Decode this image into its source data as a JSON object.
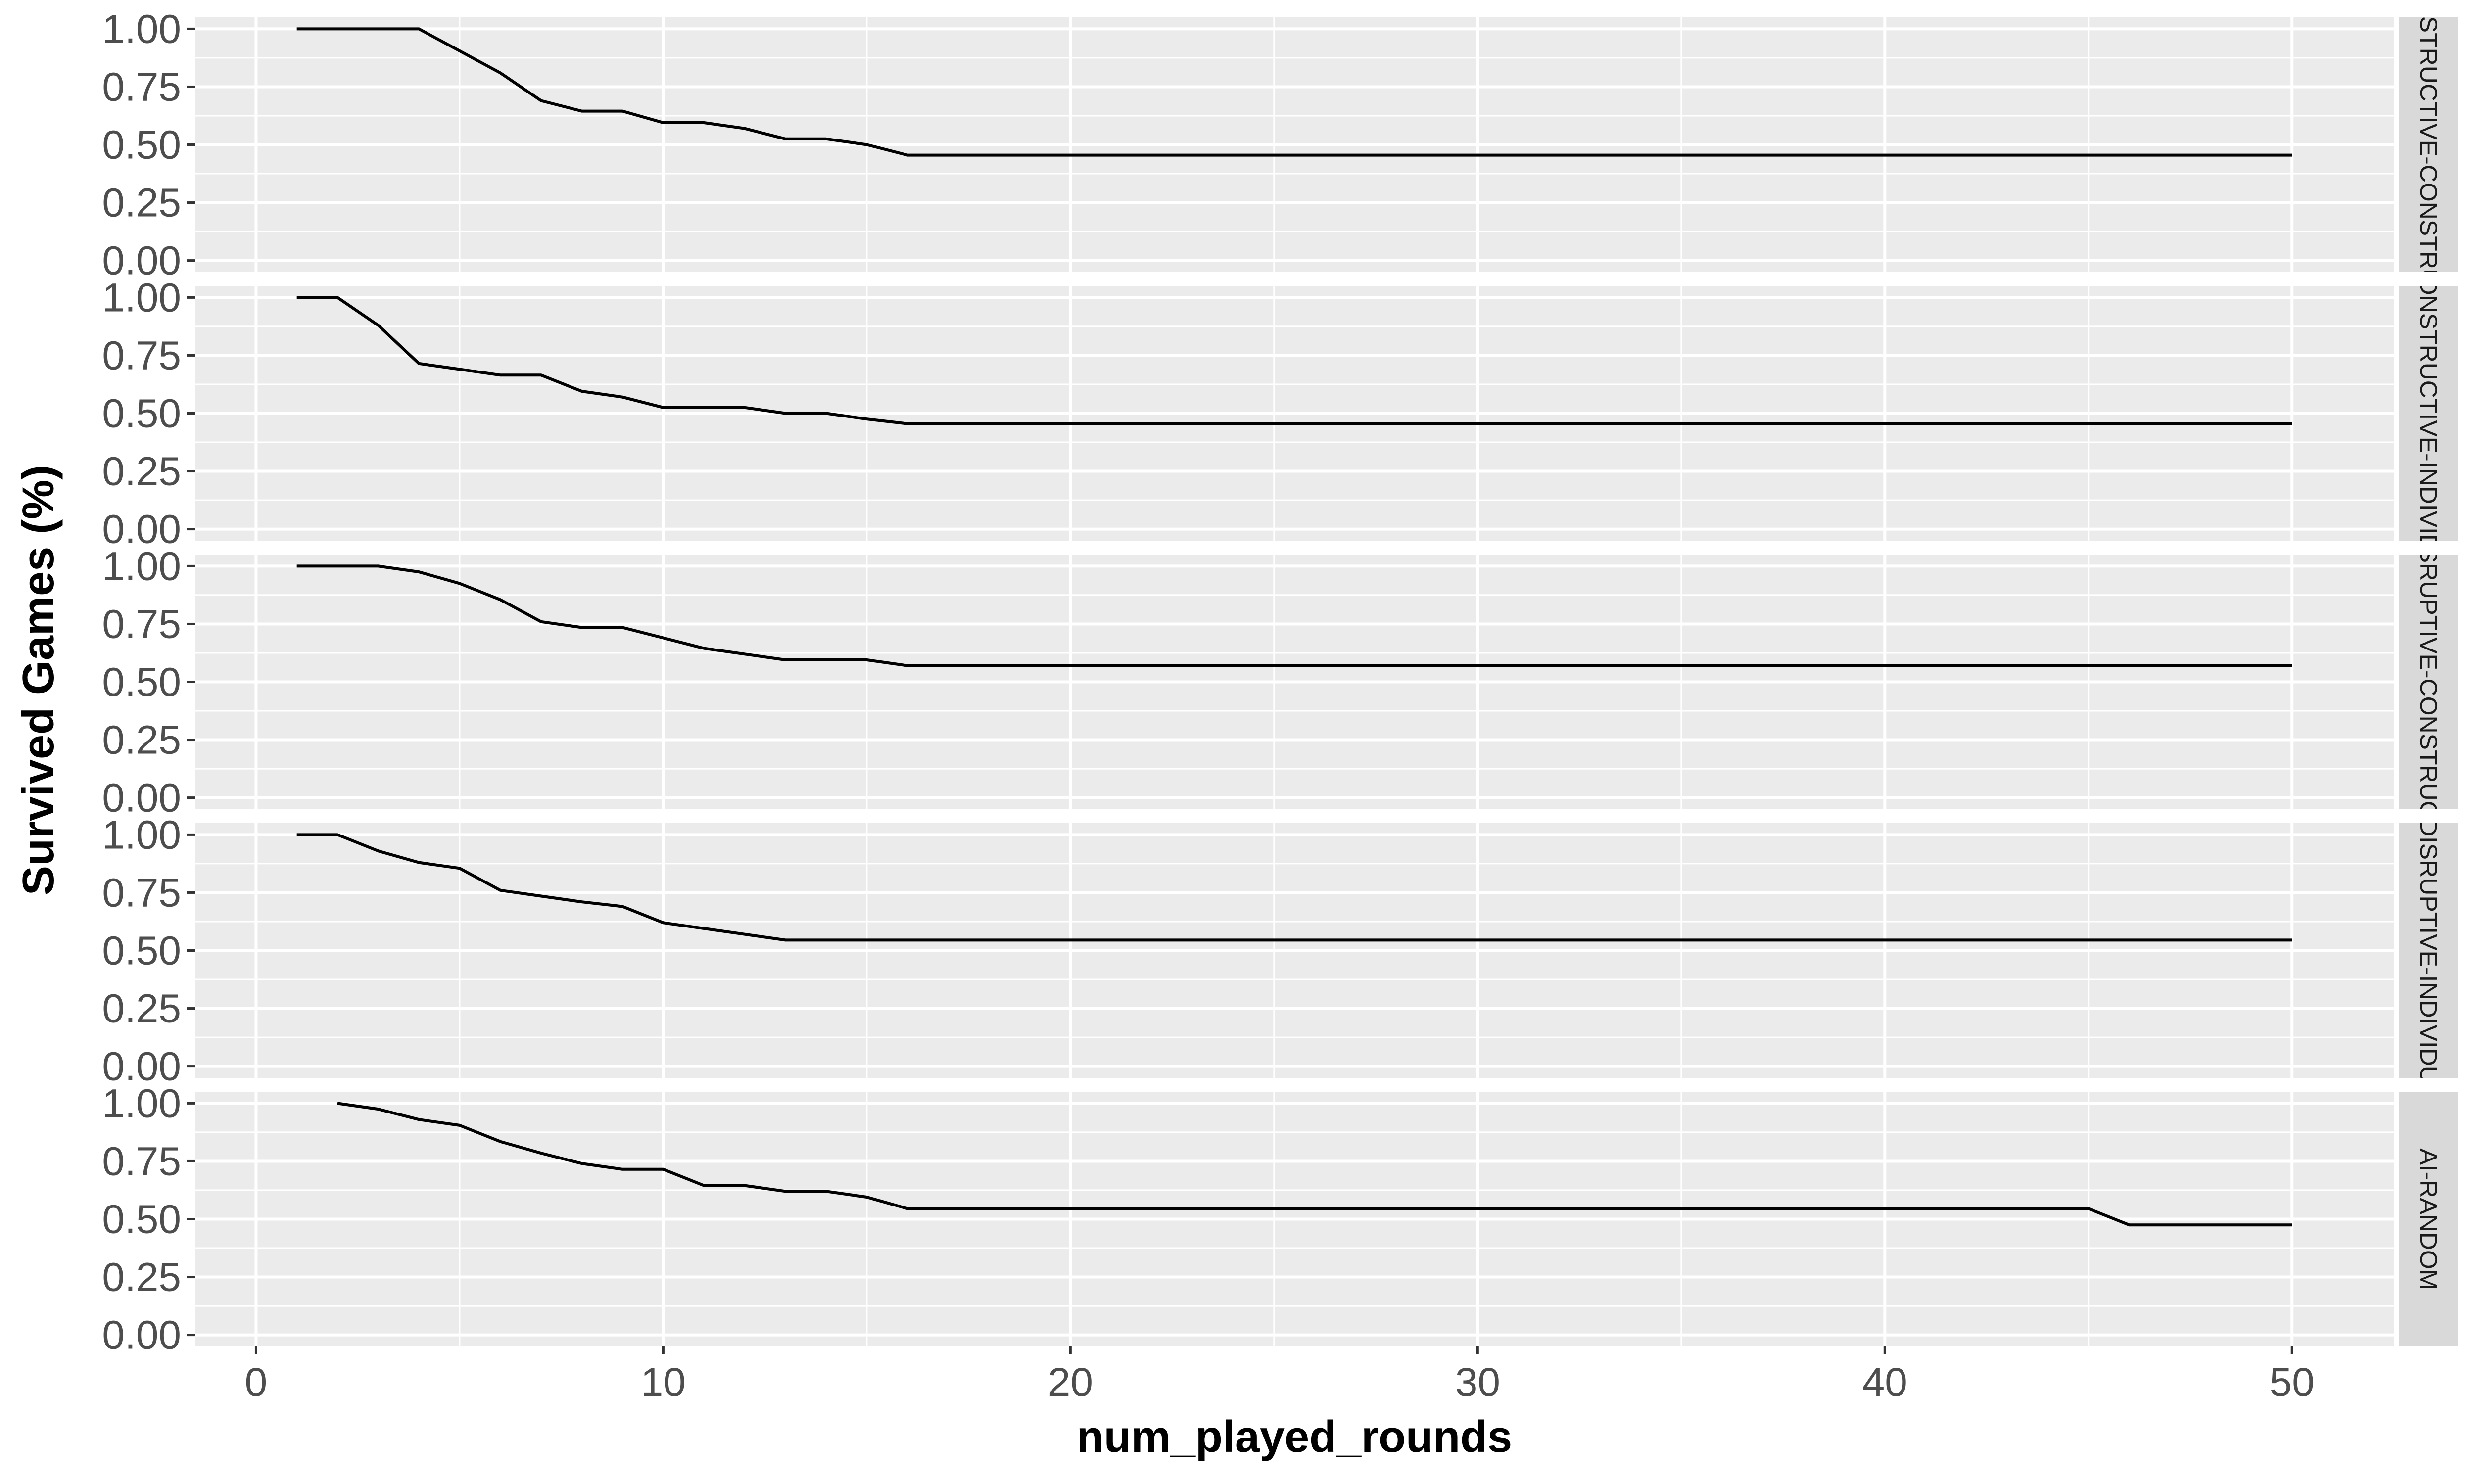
{
  "chart_data": {
    "type": "line",
    "xlabel": "num_played_rounds",
    "ylabel": "Survived Games (%)",
    "xlim": [
      -1.5,
      52.5
    ],
    "ylim": [
      -0.05,
      1.05
    ],
    "x_ticks": [
      0,
      10,
      20,
      30,
      40,
      50
    ],
    "x_tick_labels": [
      "0",
      "10",
      "20",
      "30",
      "40",
      "50"
    ],
    "y_ticks": [
      0,
      0.25,
      0.5,
      0.75,
      1.0
    ],
    "y_tick_labels": [
      "0.00",
      "0.25",
      "0.50",
      "0.75",
      "1.00"
    ],
    "grid": true,
    "line_color": "#000000",
    "panel_background": "#ebebeb",
    "strip_background": "#d9d9d9",
    "panels": [
      {
        "strip_label": "AI-CONSTRUCTIVE-CONSTRUCTIVE",
        "x": [
          1,
          2,
          3,
          4,
          5,
          6,
          7,
          8,
          9,
          10,
          11,
          12,
          13,
          14,
          15,
          16,
          50
        ],
        "y": [
          1.0,
          1.0,
          1.0,
          1.0,
          0.905,
          0.81,
          0.69,
          0.645,
          0.645,
          0.595,
          0.595,
          0.57,
          0.525,
          0.525,
          0.5,
          0.455,
          0.455
        ]
      },
      {
        "strip_label": "AI-CONSTRUCTIVE-INDIVIDUAL",
        "x": [
          1,
          2,
          3,
          4,
          5,
          6,
          7,
          8,
          9,
          10,
          11,
          12,
          13,
          14,
          15,
          16,
          50
        ],
        "y": [
          1.0,
          1.0,
          0.88,
          0.715,
          0.69,
          0.665,
          0.665,
          0.595,
          0.57,
          0.525,
          0.525,
          0.525,
          0.5,
          0.5,
          0.475,
          0.455,
          0.455
        ]
      },
      {
        "strip_label": "AI-DISRUPTIVE-CONSTRUCTIVE",
        "x": [
          1,
          2,
          3,
          4,
          5,
          6,
          7,
          8,
          9,
          10,
          11,
          12,
          13,
          14,
          15,
          16,
          50
        ],
        "y": [
          1.0,
          1.0,
          1.0,
          0.975,
          0.925,
          0.855,
          0.76,
          0.735,
          0.735,
          0.69,
          0.645,
          0.62,
          0.595,
          0.595,
          0.595,
          0.57,
          0.57
        ]
      },
      {
        "strip_label": "AI-DISRUPTIVE-INDIVIDUAL",
        "x": [
          1,
          2,
          3,
          4,
          5,
          6,
          7,
          8,
          9,
          10,
          11,
          12,
          13,
          50
        ],
        "y": [
          1.0,
          1.0,
          0.93,
          0.88,
          0.855,
          0.76,
          0.735,
          0.71,
          0.69,
          0.62,
          0.595,
          0.57,
          0.545,
          0.545
        ]
      },
      {
        "strip_label": "AI-RANDOM",
        "x": [
          2,
          3,
          4,
          5,
          6,
          7,
          8,
          9,
          10,
          11,
          12,
          13,
          14,
          15,
          16,
          45,
          46,
          50
        ],
        "y": [
          1.0,
          0.975,
          0.93,
          0.905,
          0.835,
          0.785,
          0.74,
          0.715,
          0.715,
          0.645,
          0.645,
          0.62,
          0.62,
          0.595,
          0.545,
          0.545,
          0.475,
          0.475
        ]
      }
    ]
  }
}
